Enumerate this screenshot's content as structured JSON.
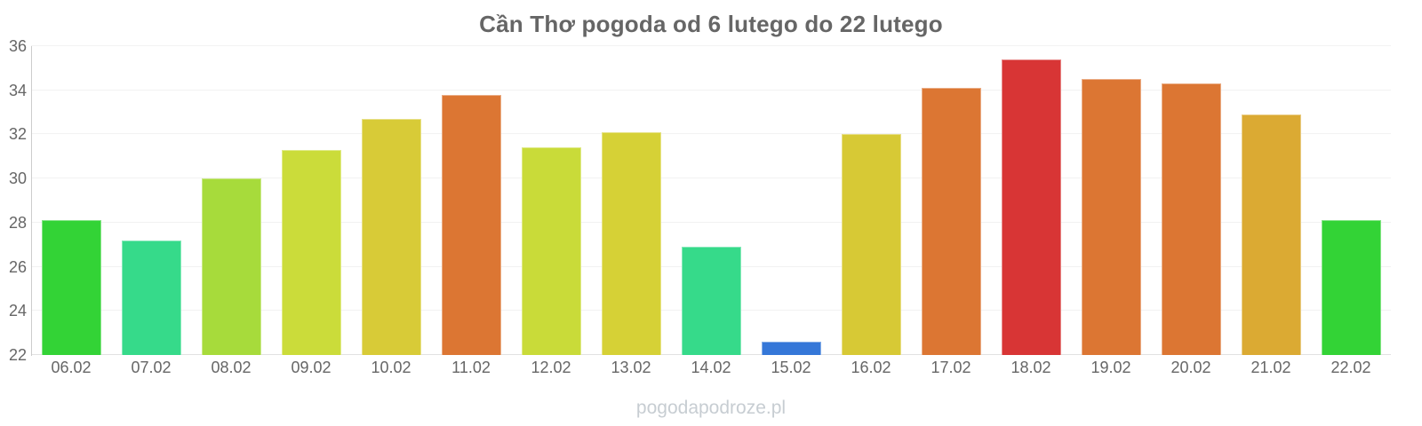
{
  "title": "Cần Thơ pogoda od 6 lutego do 22 lutego",
  "watermark": "pogodapodroze.pl",
  "colors": {
    "background": "#ffffff",
    "title_text": "#666666",
    "axis_text": "#666666",
    "gridline": "#f2f2f2",
    "axis_line": "#cccccc",
    "watermark_text": "#c7cdd2"
  },
  "chart_data": {
    "type": "bar",
    "title": "Cần Thơ pogoda od 6 lutego do 22 lutego",
    "xlabel": "",
    "ylabel": "",
    "ylim": [
      22,
      36
    ],
    "y_ticks": [
      22,
      24,
      26,
      28,
      30,
      32,
      34,
      36
    ],
    "grid": true,
    "legend": false,
    "categories": [
      "06.02",
      "07.02",
      "08.02",
      "09.02",
      "10.02",
      "11.02",
      "12.02",
      "13.02",
      "14.02",
      "15.02",
      "16.02",
      "17.02",
      "18.02",
      "19.02",
      "20.02",
      "21.02",
      "22.02"
    ],
    "values": [
      28.1,
      27.2,
      30.0,
      31.3,
      32.7,
      33.8,
      31.4,
      32.1,
      26.9,
      22.6,
      32.0,
      34.1,
      35.4,
      34.5,
      34.3,
      32.9,
      28.1
    ],
    "bar_colors": [
      "#33d336",
      "#36da8a",
      "#a7db3b",
      "#cbdc3a",
      "#d8cb37",
      "#dc7633",
      "#c9db39",
      "#d6d136",
      "#36da8a",
      "#3577d8",
      "#d7c935",
      "#dc7633",
      "#d83535",
      "#dc7633",
      "#dc7633",
      "#dbaa33",
      "#33d336"
    ]
  }
}
